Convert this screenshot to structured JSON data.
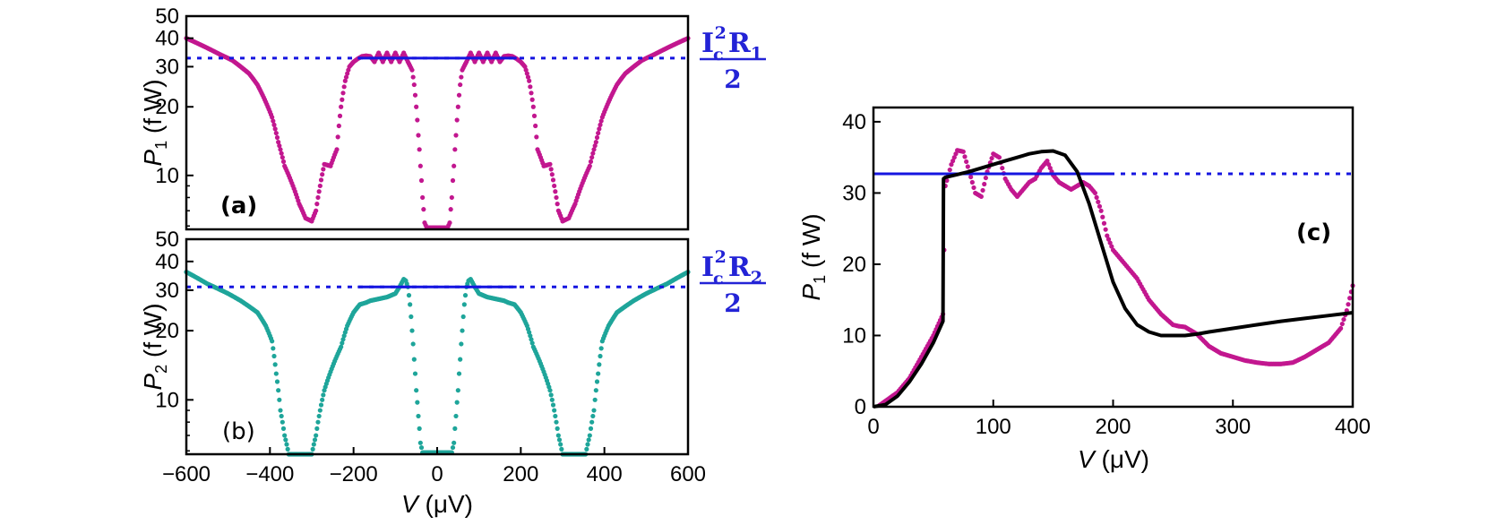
{
  "colors": {
    "magenta": "#c2178f",
    "teal": "#1ea59a",
    "blue": "#1515e0",
    "equation": "#2323d6",
    "fit": "#000000"
  },
  "chart_data": [
    {
      "id": "a",
      "type": "scatter",
      "panel_label": "(a)",
      "y_scale": "log",
      "xlim": [
        -600,
        600
      ],
      "ylim": [
        5.8,
        50
      ],
      "x_ticks": [],
      "y_ticks": [
        10,
        20,
        30,
        40,
        50
      ],
      "y_tick_labels": [
        "10",
        "20",
        "30",
        "40",
        "50"
      ],
      "ylabel_main": "P",
      "ylabel_sub": "1",
      "ylabel_unit": " (f W)",
      "reference_level": 32.7,
      "reference_solid_range": [
        -190,
        190
      ],
      "equation": {
        "I": "I",
        "c": "c",
        "power": "2",
        "R": "R",
        "sub": "1",
        "denominator": "2"
      },
      "series": [
        {
          "name": "P1 data",
          "color": "#c2178f",
          "x": [
            -600,
            -560,
            -520,
            -490,
            -470,
            -450,
            -430,
            -410,
            -395,
            -380,
            -365,
            -350,
            -340,
            -330,
            -315,
            -300,
            -290,
            -280,
            -270,
            -255,
            -240,
            -230,
            -220,
            -210,
            -200,
            -190,
            -180,
            -170,
            -160,
            -150,
            -140,
            -130,
            -120,
            -110,
            -100,
            -90,
            -80,
            -70,
            -60,
            -55,
            -50,
            -45,
            -40,
            -35,
            -30,
            -25,
            25,
            30,
            35,
            40,
            45,
            50,
            55,
            60,
            70,
            80,
            90,
            100,
            110,
            120,
            130,
            140,
            150,
            160,
            170,
            180,
            190,
            200,
            210,
            220,
            230,
            240,
            255,
            270,
            280,
            290,
            300,
            315,
            330,
            340,
            350,
            365,
            380,
            395,
            410,
            430,
            450,
            470,
            490,
            520,
            560,
            600
          ],
          "y": [
            40,
            37,
            34,
            32,
            30,
            28,
            25,
            21,
            18,
            14,
            11,
            9.5,
            8.5,
            7.5,
            6.5,
            6.3,
            7,
            9,
            11.2,
            11,
            13,
            20,
            26,
            30,
            31.5,
            32.5,
            33.3,
            33.5,
            33.3,
            31.5,
            34.5,
            31.5,
            34.5,
            31.5,
            34.5,
            31.5,
            34.5,
            31.5,
            29,
            25,
            20,
            15,
            11,
            8,
            6.2,
            5.9,
            5.9,
            6.2,
            8,
            11,
            15,
            20,
            25,
            29,
            31.5,
            34.5,
            31.5,
            34.5,
            31.5,
            34.5,
            31.5,
            34.5,
            31.5,
            33.3,
            33.5,
            33.3,
            32.5,
            31.5,
            30,
            26,
            20,
            13,
            11,
            11.2,
            9,
            7,
            6.3,
            6.5,
            7.5,
            8.5,
            9.5,
            11,
            14,
            18,
            21,
            25,
            28,
            30,
            32,
            34,
            37,
            40
          ]
        }
      ]
    },
    {
      "id": "b",
      "type": "scatter",
      "panel_label": "(b)",
      "y_scale": "log",
      "xlim": [
        -600,
        600
      ],
      "ylim": [
        5.8,
        50
      ],
      "x_ticks": [
        -600,
        -400,
        -200,
        0,
        200,
        400,
        600
      ],
      "x_tick_labels": [
        "−600",
        "−400",
        "−200",
        "0",
        "200",
        "400",
        "600"
      ],
      "y_ticks": [
        10,
        20,
        30,
        40,
        50
      ],
      "y_tick_labels": [
        "10",
        "20",
        "30",
        "40",
        "50"
      ],
      "xlabel_main": "V",
      "xlabel_unit": " (μV)",
      "ylabel_main": "P",
      "ylabel_sub": "2",
      "ylabel_unit": " (f W)",
      "reference_level": 31.0,
      "reference_solid_range": [
        -190,
        190
      ],
      "equation": {
        "I": "I",
        "c": "c",
        "power": "2",
        "R": "R",
        "sub": "2",
        "denominator": "2"
      },
      "series": [
        {
          "name": "P2 data",
          "color": "#1ea59a",
          "x": [
            -600,
            -550,
            -500,
            -470,
            -450,
            -430,
            -410,
            -395,
            -385,
            -375,
            -365,
            -355,
            -300,
            -290,
            -280,
            -270,
            -250,
            -230,
            -215,
            -200,
            -185,
            -170,
            -160,
            -140,
            -120,
            -100,
            -90,
            -80,
            -75,
            -70,
            -65,
            -60,
            -55,
            -50,
            -45,
            -40,
            -35,
            35,
            40,
            45,
            50,
            55,
            60,
            65,
            70,
            75,
            80,
            90,
            100,
            120,
            140,
            160,
            170,
            185,
            200,
            215,
            230,
            250,
            270,
            280,
            290,
            300,
            355,
            365,
            375,
            385,
            395,
            410,
            430,
            450,
            470,
            500,
            550,
            600
          ],
          "y": [
            36,
            32,
            29,
            27,
            25.5,
            24,
            21,
            18,
            13,
            9,
            7,
            5.8,
            5.8,
            7,
            9,
            11,
            14,
            17,
            21,
            24,
            26,
            26.5,
            27,
            27.5,
            28,
            29,
            31,
            33.5,
            33,
            31,
            26,
            20,
            15,
            11,
            8.5,
            6.5,
            5.9,
            5.9,
            6.5,
            8.5,
            11,
            15,
            20,
            26,
            31,
            33,
            33.5,
            31,
            29,
            28,
            27.5,
            27,
            26.5,
            26,
            24,
            21,
            17,
            14,
            11,
            9,
            7,
            5.8,
            5.8,
            7,
            9,
            13,
            18,
            21,
            24,
            25.5,
            27,
            29,
            32,
            36
          ]
        }
      ]
    },
    {
      "id": "c",
      "type": "line",
      "panel_label": "(c)",
      "y_scale": "linear",
      "xlim": [
        0,
        400
      ],
      "ylim": [
        0,
        42
      ],
      "x_ticks": [
        0,
        100,
        200,
        300,
        400
      ],
      "x_tick_labels": [
        "0",
        "100",
        "200",
        "300",
        "400"
      ],
      "y_ticks": [
        0,
        10,
        20,
        30,
        40
      ],
      "y_tick_labels": [
        "0",
        "10",
        "20",
        "30",
        "40"
      ],
      "xlabel_main": "V",
      "xlabel_unit": " (μV)",
      "ylabel_main": "P",
      "ylabel_sub": "1",
      "ylabel_unit": " (f W)",
      "reference_level": 32.7,
      "reference_solid_range": [
        0,
        200
      ],
      "series": [
        {
          "name": "P1 data",
          "color": "#c2178f",
          "x": [
            5,
            20,
            30,
            40,
            50,
            58,
            60,
            65,
            70,
            75,
            80,
            85,
            90,
            95,
            100,
            105,
            110,
            115,
            120,
            125,
            130,
            135,
            140,
            145,
            150,
            155,
            160,
            165,
            170,
            175,
            180,
            185,
            190,
            195,
            200,
            210,
            220,
            230,
            240,
            250,
            255,
            260,
            270,
            280,
            290,
            300,
            310,
            320,
            330,
            340,
            350,
            360,
            370,
            380,
            390,
            395,
            400
          ],
          "y": [
            0.2,
            2,
            4,
            7,
            10,
            13,
            31,
            34,
            36,
            35.8,
            33,
            30,
            29.5,
            33,
            35.5,
            35,
            32,
            30.5,
            29.5,
            30.5,
            31.5,
            32,
            33.5,
            34.5,
            32.5,
            31.5,
            31,
            30.5,
            31,
            31.5,
            31,
            30,
            27.5,
            24,
            22,
            20,
            18,
            15,
            13,
            11.5,
            11.3,
            11.2,
            10.2,
            8.5,
            7.5,
            7,
            6.5,
            6.2,
            6,
            6,
            6.2,
            7,
            8,
            9,
            11,
            13.5,
            17
          ]
        },
        {
          "name": "model fit",
          "color": "#000000",
          "x": [
            0,
            10,
            20,
            30,
            40,
            50,
            58,
            58.5,
            60,
            70,
            80,
            90,
            100,
            110,
            120,
            130,
            140,
            150,
            160,
            170,
            180,
            190,
            200,
            210,
            220,
            230,
            240,
            250,
            260,
            270,
            280,
            300,
            320,
            340,
            360,
            380,
            400
          ],
          "y": [
            0,
            0.3,
            1.5,
            3.5,
            6,
            9,
            12,
            32,
            32.2,
            32.6,
            33,
            33.5,
            34,
            34.5,
            35,
            35.5,
            35.8,
            35.9,
            35.3,
            33,
            28.5,
            23,
            17.5,
            13.8,
            11.5,
            10.5,
            10,
            10,
            10,
            10.2,
            10.5,
            11,
            11.5,
            12,
            12.4,
            12.8,
            13.2
          ]
        }
      ]
    }
  ]
}
